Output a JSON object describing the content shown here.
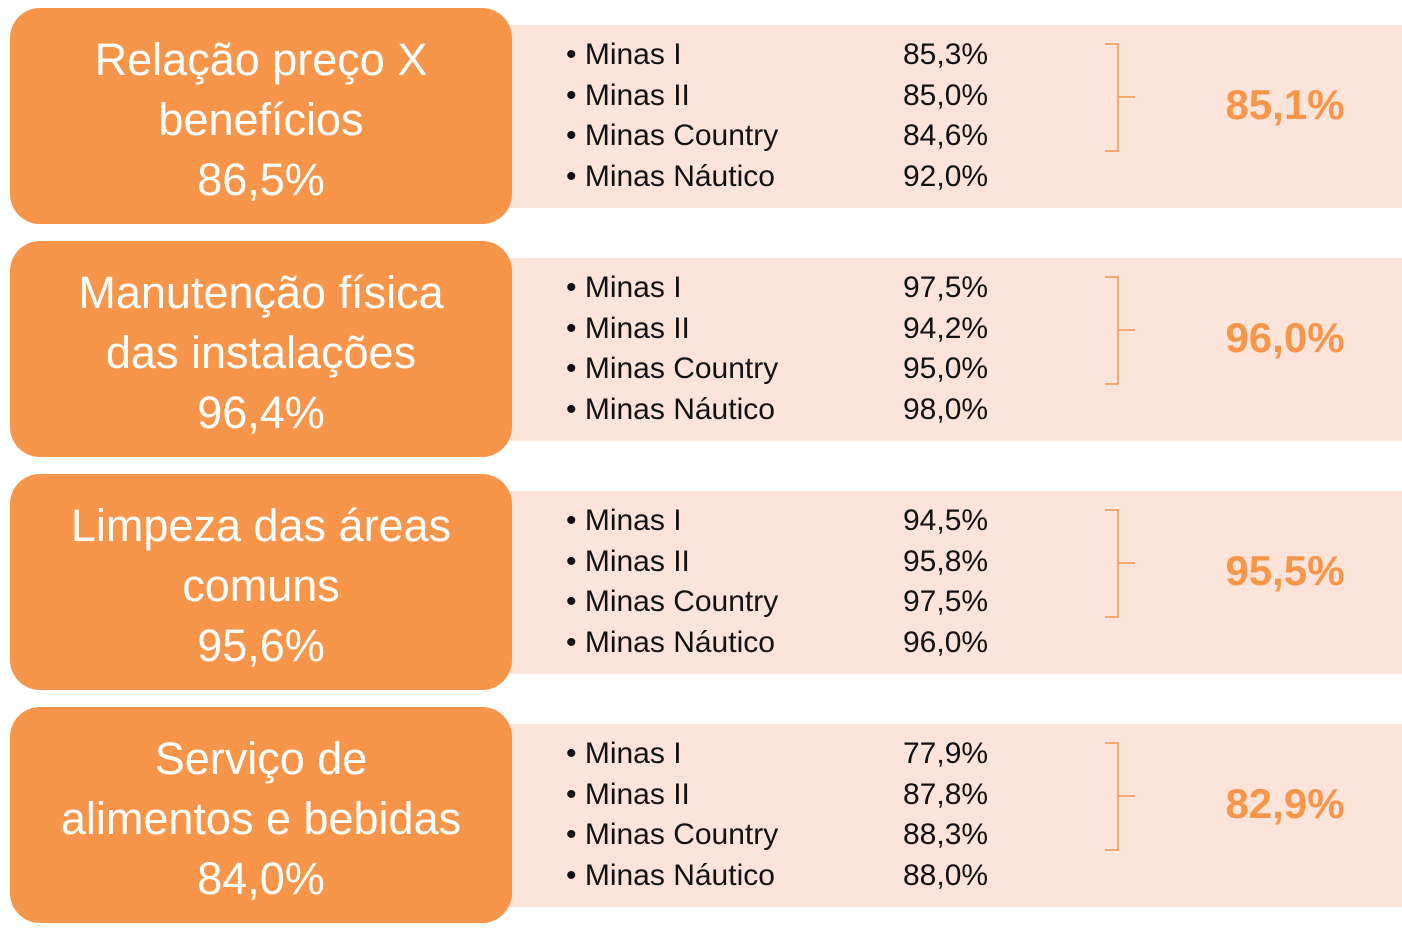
{
  "rows": [
    {
      "title_lines": [
        "Relação preço X",
        "benefícios"
      ],
      "total": "86,5%",
      "items": [
        {
          "name": "Minas I",
          "value": "85,3%"
        },
        {
          "name": "Minas II",
          "value": "85,0%"
        },
        {
          "name": "Minas Country",
          "value": "84,6%"
        },
        {
          "name": "Minas Náutico",
          "value": "92,0%"
        }
      ],
      "summary": "85,1%"
    },
    {
      "title_lines": [
        "Manutenção física",
        "das instalações"
      ],
      "total": "96,4%",
      "items": [
        {
          "name": "Minas I",
          "value": "97,5%"
        },
        {
          "name": "Minas II",
          "value": "94,2%"
        },
        {
          "name": "Minas Country",
          "value": "95,0%"
        },
        {
          "name": "Minas Náutico",
          "value": "98,0%"
        }
      ],
      "summary": "96,0%"
    },
    {
      "title_lines": [
        "Limpeza das áreas",
        "comuns"
      ],
      "total": "95,6%",
      "items": [
        {
          "name": "Minas I",
          "value": "94,5%"
        },
        {
          "name": "Minas II",
          "value": "95,8%"
        },
        {
          "name": "Minas Country",
          "value": "97,5%"
        },
        {
          "name": "Minas Náutico",
          "value": "96,0%"
        }
      ],
      "summary": "95,5%"
    },
    {
      "title_lines": [
        "Serviço de",
        "alimentos e bebidas"
      ],
      "total": "84,0%",
      "items": [
        {
          "name": "Minas I",
          "value": "77,9%"
        },
        {
          "name": "Minas II",
          "value": "87,8%"
        },
        {
          "name": "Minas Country",
          "value": "88,3%"
        },
        {
          "name": "Minas Náutico",
          "value": "88,0%"
        }
      ],
      "summary": "82,9%"
    }
  ]
}
